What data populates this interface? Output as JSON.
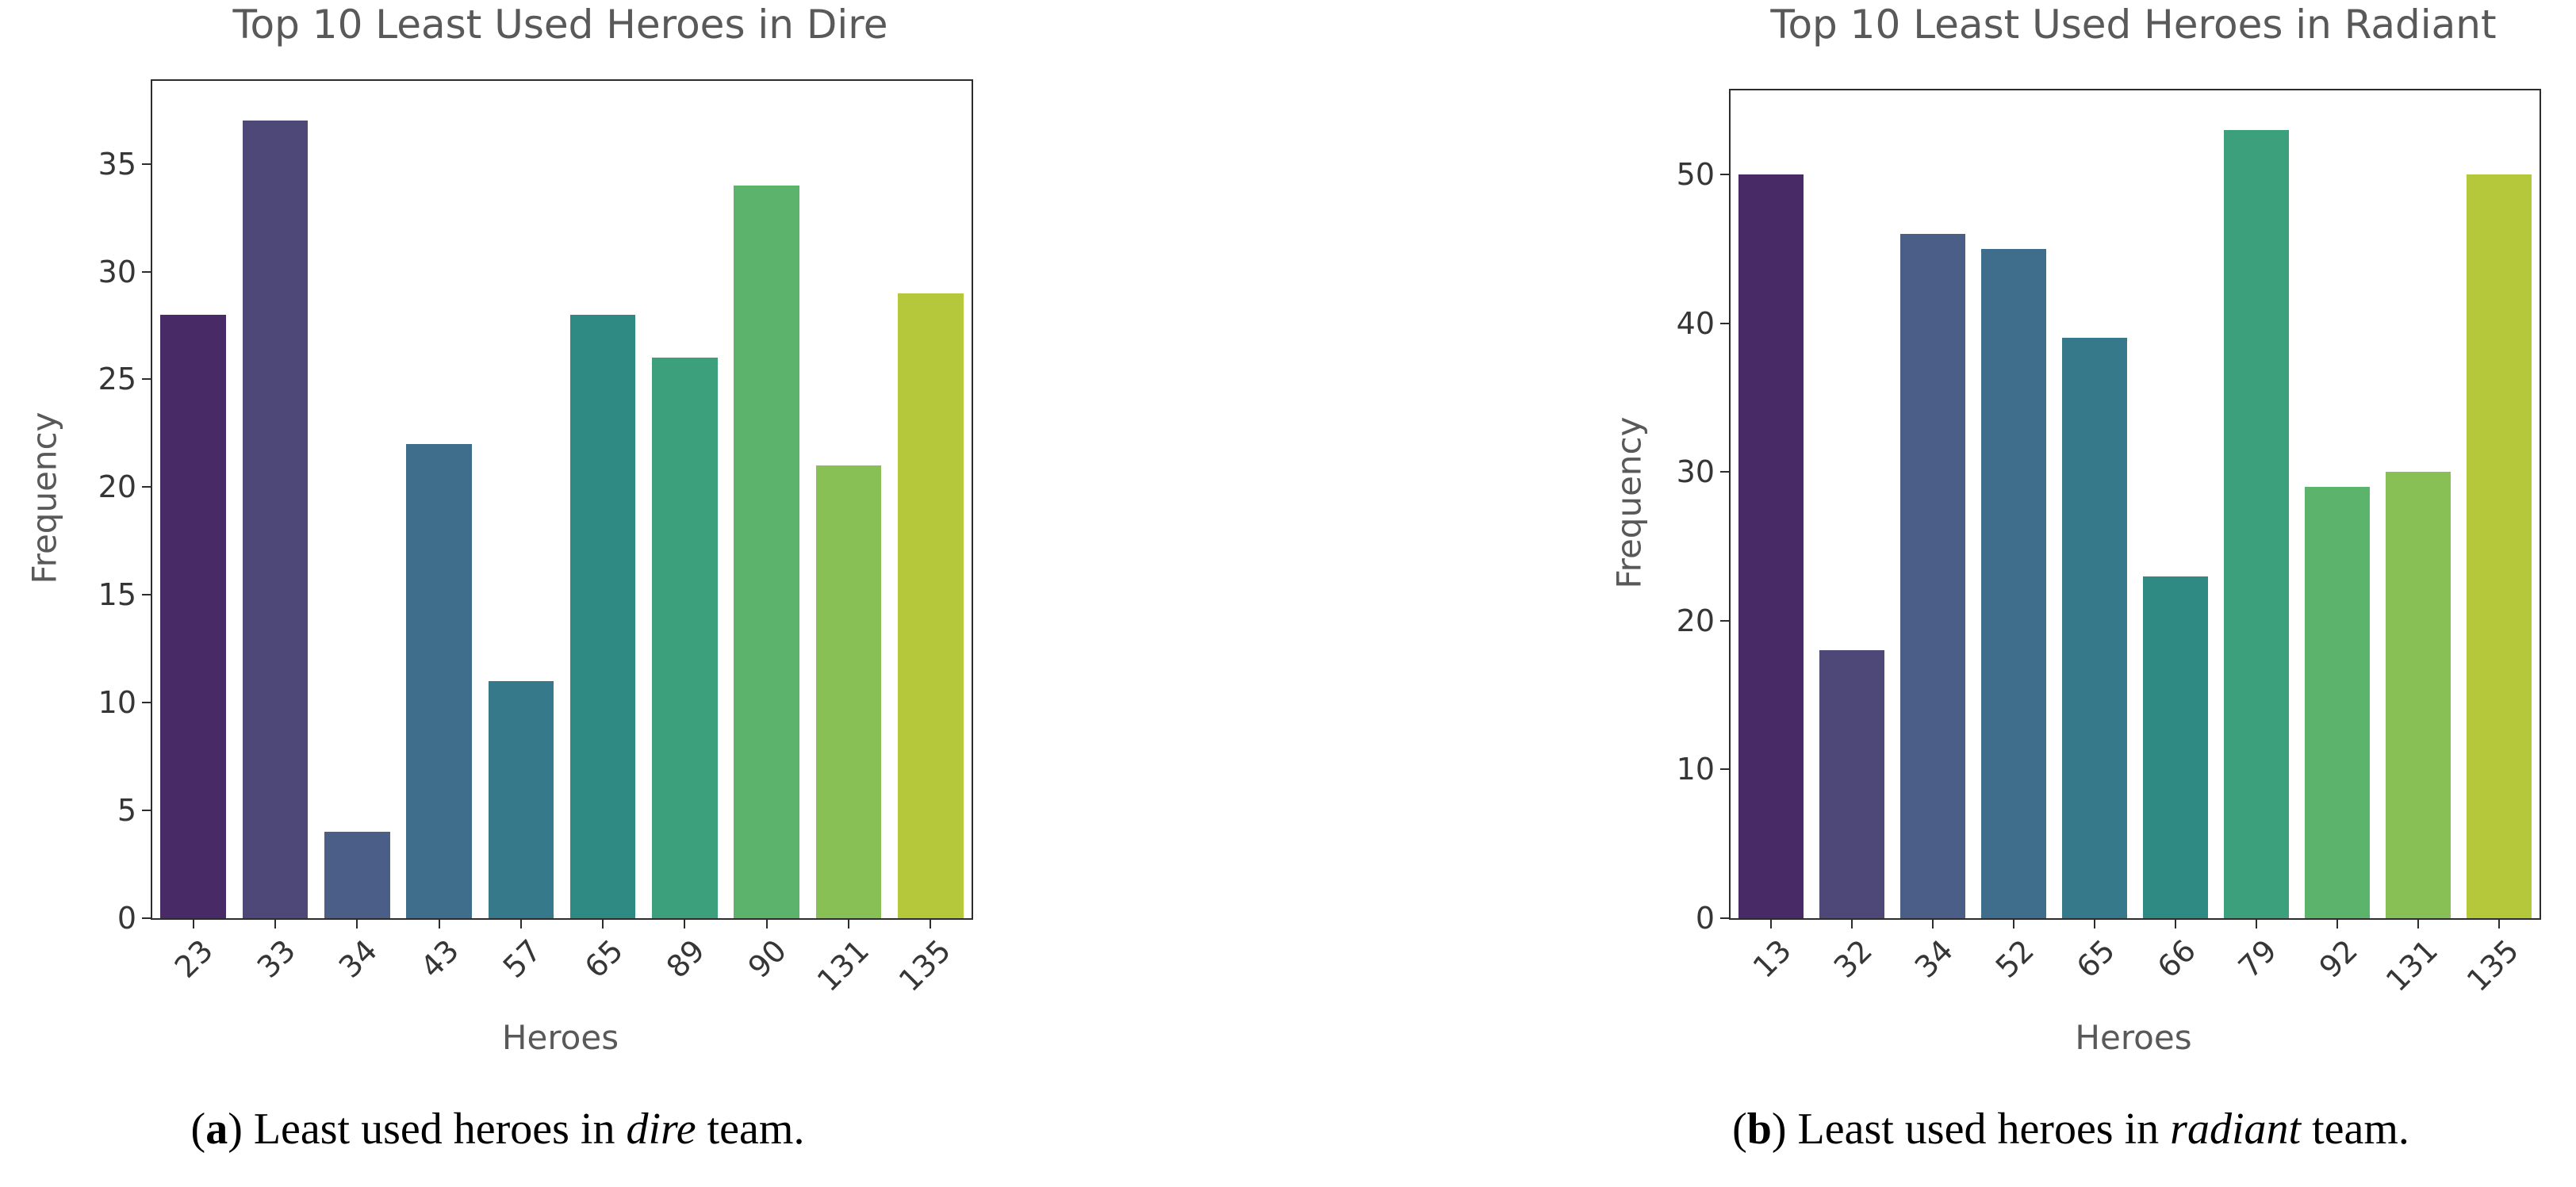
{
  "chart_data": [
    {
      "type": "bar",
      "title": "Top 10 Least Used Heroes in Dire",
      "xlabel": "Heroes",
      "ylabel": "Frequency",
      "categories": [
        "23",
        "33",
        "34",
        "43",
        "57",
        "65",
        "89",
        "90",
        "131",
        "135"
      ],
      "values": [
        28,
        37,
        4,
        22,
        11,
        28,
        26,
        34,
        21,
        29
      ],
      "yticks": [
        0,
        5,
        10,
        15,
        20,
        25,
        30,
        35
      ],
      "ylim": [
        0,
        38.85
      ],
      "grid": false,
      "legend": "none"
    },
    {
      "type": "bar",
      "title": "Top 10 Least Used Heroes in Radiant",
      "xlabel": "Heroes",
      "ylabel": "Frequency",
      "categories": [
        "13",
        "32",
        "34",
        "52",
        "65",
        "66",
        "79",
        "92",
        "131",
        "135"
      ],
      "values": [
        50,
        18,
        46,
        45,
        39,
        23,
        53,
        29,
        30,
        50
      ],
      "yticks": [
        0,
        10,
        20,
        30,
        40,
        50
      ],
      "ylim": [
        0,
        55.65
      ],
      "grid": false,
      "legend": "none"
    }
  ],
  "bar_colors": [
    "#482a67",
    "#4d4878",
    "#4b5e88",
    "#3f6e8d",
    "#35798a",
    "#2e8a82",
    "#3da07c",
    "#5cb36c",
    "#88c055",
    "#b5c73b"
  ],
  "captions": [
    {
      "open": "(",
      "letter": "a",
      "close": ") ",
      "before": "Least used heroes in ",
      "emph": "dire",
      "after": " team."
    },
    {
      "open": "(",
      "letter": "b",
      "close": ") ",
      "before": "Least used heroes in ",
      "emph": "radiant",
      "after": " team."
    }
  ],
  "colors": {
    "title": "#595959",
    "axis_label": "#595959",
    "tick_label": "#363636",
    "spine": "#2d2d2d",
    "caption_text": "#000000",
    "background": "#ffffff"
  }
}
